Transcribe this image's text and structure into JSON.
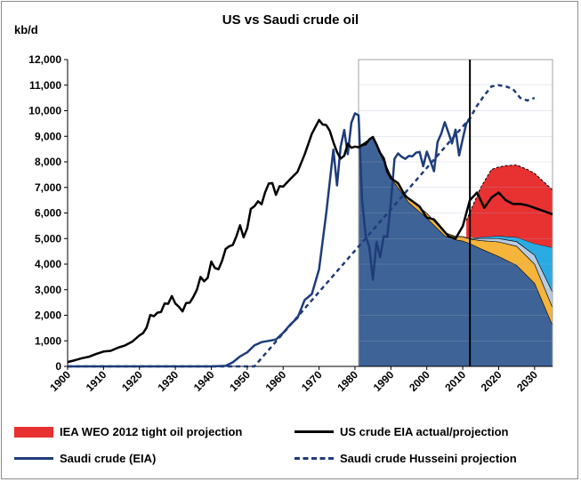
{
  "chart_data": {
    "type": "area",
    "title": "US vs Saudi crude oil",
    "ylabel": "kb/d",
    "xlabel": "",
    "xlim": [
      1900,
      2035
    ],
    "ylim": [
      0,
      12000
    ],
    "x_ticks": [
      "1900",
      "1910",
      "1920",
      "1930",
      "1940",
      "1950",
      "1960",
      "1970",
      "1980",
      "1990",
      "2000",
      "2010",
      "2020",
      "2030"
    ],
    "y_ticks": [
      "0",
      "1,000",
      "2,000",
      "3,000",
      "4,000",
      "5,000",
      "6,000",
      "7,000",
      "8,000",
      "9,000",
      "10,000",
      "11,000",
      "12,000"
    ],
    "projection_marker_year": 2012,
    "colors": {
      "us_area_base": "#3e6396",
      "stack_orange": "#f5b43a",
      "stack_lightblue": "#b8cce4",
      "stack_cyan": "#29abe2",
      "tight_oil": "#e83131",
      "us_line": "#000000",
      "saudi": "#1f3c7a"
    },
    "legend": [
      {
        "label": "IEA WEO 2012 tight oil projection",
        "style": "red-box"
      },
      {
        "label": "US crude EIA actual/projection",
        "style": "black-line"
      },
      {
        "label": "Saudi crude (EIA)",
        "style": "blue-line"
      },
      {
        "label": "Saudi crude Husseini projection",
        "style": "blue-dash"
      }
    ],
    "series": [
      {
        "name": "US crude EIA actual/projection",
        "x": [
          1900,
          1902,
          1904,
          1906,
          1908,
          1910,
          1912,
          1914,
          1916,
          1918,
          1920,
          1921,
          1922,
          1923,
          1924,
          1925,
          1926,
          1927,
          1928,
          1929,
          1930,
          1931,
          1932,
          1933,
          1934,
          1935,
          1936,
          1937,
          1938,
          1939,
          1940,
          1941,
          1942,
          1943,
          1944,
          1945,
          1946,
          1947,
          1948,
          1949,
          1950,
          1951,
          1952,
          1953,
          1954,
          1955,
          1956,
          1957,
          1958,
          1959,
          1960,
          1962,
          1964,
          1966,
          1968,
          1970,
          1971,
          1972,
          1973,
          1974,
          1975,
          1976,
          1977,
          1978,
          1979,
          1980,
          1981,
          1982,
          1983,
          1984,
          1985,
          1986,
          1987,
          1988,
          1989,
          1990,
          1992,
          1994,
          1996,
          1998,
          2000,
          2002,
          2004,
          2006,
          2008,
          2010,
          2012,
          2014,
          2016,
          2018,
          2020,
          2022,
          2024,
          2026,
          2028,
          2030,
          2032,
          2035
        ],
        "values": [
          170,
          240,
          320,
          380,
          490,
          580,
          610,
          730,
          820,
          970,
          1210,
          1300,
          1520,
          2010,
          1960,
          2100,
          2130,
          2460,
          2450,
          2750,
          2460,
          2330,
          2150,
          2480,
          2490,
          2720,
          3000,
          3500,
          3330,
          3460,
          4100,
          3850,
          3800,
          4130,
          4590,
          4700,
          4750,
          5090,
          5520,
          5050,
          5410,
          6160,
          6260,
          6460,
          6340,
          6810,
          7150,
          7170,
          6710,
          7050,
          7030,
          7330,
          7610,
          8290,
          9100,
          9640,
          9460,
          9440,
          9210,
          8770,
          8380,
          8130,
          8240,
          8710,
          8550,
          8600,
          8570,
          8650,
          8690,
          8880,
          8970,
          8680,
          8350,
          8140,
          7610,
          7360,
          7170,
          6660,
          6460,
          6250,
          5820,
          5750,
          5420,
          5100,
          5000,
          5480,
          6500,
          6800,
          6200,
          6600,
          6800,
          6500,
          6350,
          6350,
          6300,
          6200,
          6100,
          5950
        ]
      },
      {
        "name": "Saudi crude (EIA)",
        "x": [
          1900,
          1940,
          1944,
          1946,
          1948,
          1950,
          1952,
          1954,
          1956,
          1958,
          1960,
          1962,
          1964,
          1966,
          1968,
          1970,
          1972,
          1974,
          1975,
          1976,
          1977,
          1978,
          1979,
          1980,
          1981,
          1982,
          1983,
          1984,
          1985,
          1986,
          1987,
          1988,
          1989,
          1990,
          1991,
          1992,
          1993,
          1994,
          1995,
          1996,
          1997,
          1998,
          1999,
          2000,
          2001,
          2002,
          2003,
          2004,
          2005,
          2006,
          2007,
          2008,
          2009,
          2010,
          2011,
          2012
        ],
        "values": [
          0,
          0,
          20,
          160,
          390,
          550,
          820,
          950,
          1000,
          1050,
          1310,
          1640,
          1900,
          2600,
          2830,
          3800,
          6000,
          8480,
          7080,
          8580,
          9250,
          8300,
          9530,
          9900,
          9820,
          6480,
          5090,
          4660,
          3390,
          4870,
          4270,
          5090,
          5060,
          6410,
          8120,
          8330,
          8200,
          8120,
          8230,
          8220,
          8360,
          8390,
          7830,
          8400,
          8030,
          7630,
          8780,
          9100,
          9550,
          9150,
          8720,
          9260,
          8250,
          8900,
          9500,
          9700
        ]
      },
      {
        "name": "Saudi crude Husseini projection",
        "x": [
          1900,
          1952,
          2012,
          2014,
          2016,
          2018,
          2020,
          2022,
          2024,
          2026,
          2028,
          2030
        ],
        "values": [
          0,
          0,
          9700,
          10200,
          10600,
          10950,
          11000,
          10950,
          10850,
          10500,
          10400,
          10500
        ]
      },
      {
        "name": "IEA WEO 2012 tight oil projection",
        "x": [
          2011,
          2015,
          2018,
          2020,
          2022,
          2025,
          2028,
          2030,
          2035
        ],
        "values": [
          5700,
          7000,
          7700,
          7800,
          7850,
          7880,
          7700,
          7550,
          6900
        ]
      }
    ],
    "stack_layers": {
      "x": [
        1981,
        1985,
        1990,
        1995,
        2000,
        2005,
        2008,
        2010,
        2012,
        2015,
        2020,
        2025,
        2030,
        2035
      ],
      "base": [
        8600,
        8950,
        7370,
        6400,
        5800,
        5100,
        4950,
        4900,
        4800,
        4600,
        4300,
        3950,
        3250,
        1600
      ],
      "orange_top": [
        8600,
        8970,
        7460,
        6560,
        5990,
        5230,
        5080,
        5070,
        4980,
        4920,
        4870,
        4700,
        4000,
        2300
      ],
      "lightblue_top": [
        8600,
        8970,
        7460,
        6560,
        5990,
        5230,
        5080,
        5070,
        5000,
        5000,
        5000,
        4880,
        4350,
        2900
      ],
      "cyan_top": [
        8600,
        8970,
        7460,
        6560,
        5990,
        5230,
        5080,
        5070,
        5000,
        5050,
        5100,
        5050,
        4800,
        4650
      ]
    }
  }
}
